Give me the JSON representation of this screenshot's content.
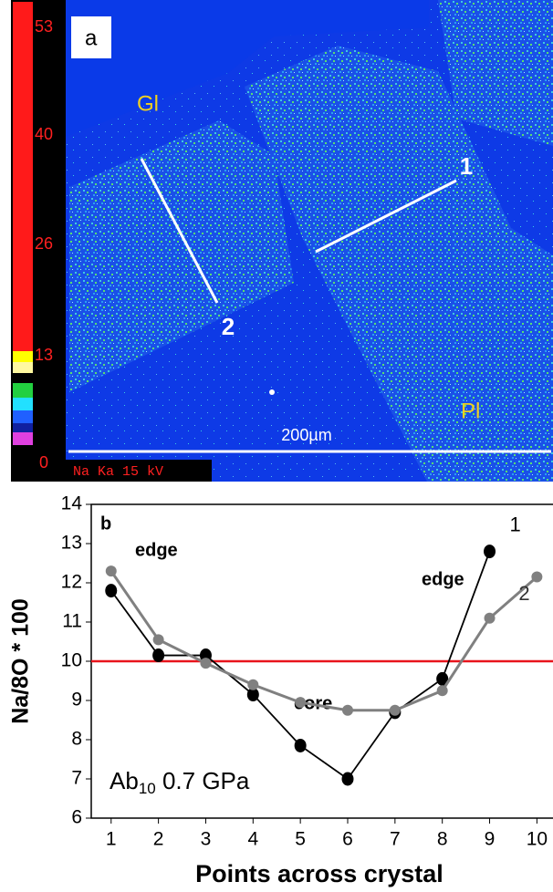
{
  "map_panel": {
    "panel_label": "a",
    "colorbar_labels": [
      "53",
      "40",
      "26",
      "13",
      "0"
    ],
    "detector_label": "Na Ka  15 kV",
    "phase_glass": "Gl",
    "phase_plag": "Pl",
    "profile_1": "1",
    "profile_2": "2",
    "scale_bar": "200µm"
  },
  "chart_data": {
    "type": "line",
    "panel_label": "b",
    "x_label": "Points across crystal",
    "y_label": "Na/8O * 100",
    "xlim": [
      0.58,
      10.34
    ],
    "ylim": [
      6,
      14
    ],
    "xticks": [
      1,
      2,
      3,
      4,
      5,
      6,
      7,
      8,
      9,
      10
    ],
    "yticks": [
      6,
      7,
      8,
      9,
      10,
      11,
      12,
      13,
      14
    ],
    "hline": {
      "value": 10,
      "color": "#e8141c"
    },
    "series": [
      {
        "name": "1",
        "color": "#000000",
        "x": [
          1,
          2,
          3,
          4,
          5,
          6,
          7,
          8,
          9
        ],
        "values": [
          11.8,
          10.15,
          10.15,
          9.15,
          7.85,
          7.0,
          8.7,
          9.55,
          12.8
        ]
      },
      {
        "name": "2",
        "color": "#808080",
        "x": [
          1,
          2,
          3,
          4,
          5,
          6,
          7,
          8,
          9,
          10
        ],
        "values": [
          12.3,
          10.55,
          9.95,
          9.4,
          8.95,
          8.75,
          8.75,
          9.25,
          11.1,
          12.15
        ]
      }
    ],
    "annotations": [
      "edge",
      "edge",
      "core"
    ],
    "sample_label": [
      "Ab",
      "10",
      " 0.7 GPa"
    ]
  }
}
